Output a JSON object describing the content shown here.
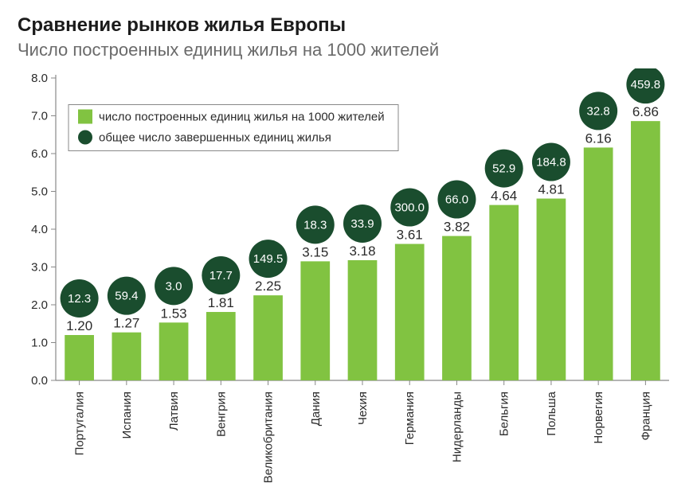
{
  "title": "Сравнение рынков жилья Европы",
  "subtitle": "Число построенных единиц жилья на 1000 жителей",
  "chart": {
    "type": "bar",
    "ylim": [
      0,
      8
    ],
    "ytick_step": 1.0,
    "bar_color": "#81c341",
    "bubble_color": "#1a4d2e",
    "bubble_text_color": "#ffffff",
    "axis_color": "#888888",
    "background_color": "#ffffff",
    "bar_width_ratio": 0.62,
    "bubble_radius": 24,
    "legend": {
      "border_color": "#888888",
      "items": [
        {
          "swatch_type": "square",
          "color": "#81c341",
          "label": "число построенных единиц жилья на 1000 жителей"
        },
        {
          "swatch_type": "circle",
          "color": "#1a4d2e",
          "label": "общее число завершенных единиц жилья"
        }
      ]
    },
    "categories": [
      "Португалия",
      "Испания",
      "Латвия",
      "Венгрия",
      "Великобритания",
      "Дания",
      "Чехия",
      "Германия",
      "Нидерланды",
      "Бельгия",
      "Польша",
      "Норвегия",
      "Франция"
    ],
    "bar_values": [
      1.2,
      1.27,
      1.53,
      1.81,
      2.25,
      3.15,
      3.18,
      3.61,
      3.82,
      4.64,
      4.81,
      6.16,
      6.86
    ],
    "bar_labels": [
      "1.20",
      "1.27",
      "1.53",
      "1.81",
      "2.25",
      "3.15",
      "3.18",
      "3.61",
      "3.82",
      "4.64",
      "4.81",
      "6.16",
      "6.86"
    ],
    "bubble_labels": [
      "12.3",
      "59.4",
      "3.0",
      "17.7",
      "149.5",
      "18.3",
      "33.9",
      "300.0",
      "66.0",
      "52.9",
      "184.8",
      "32.8",
      "459.8"
    ]
  }
}
